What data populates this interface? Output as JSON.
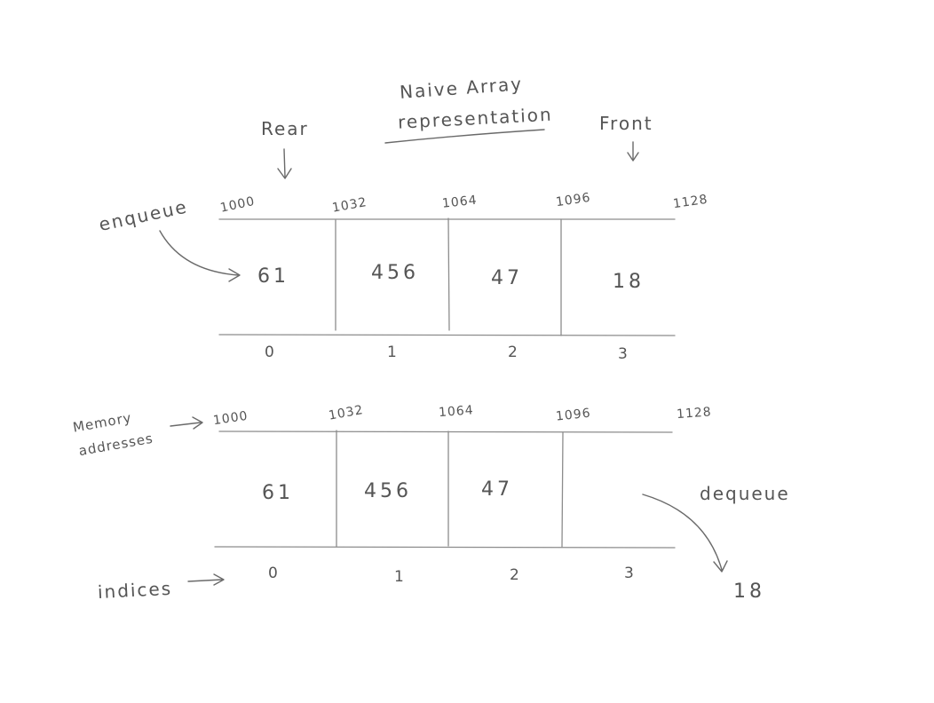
{
  "title": {
    "line1": "Naive Array",
    "line2": "representation"
  },
  "labels": {
    "rear": "Rear",
    "front": "Front",
    "enqueue": "enqueue",
    "dequeue": "dequeue",
    "memory_line1": "Memory",
    "memory_line2": "addresses",
    "indices": "indices",
    "dequeued_value": "18"
  },
  "top_array": {
    "addresses": [
      "1000",
      "1032",
      "1064",
      "1096",
      "1128"
    ],
    "values": [
      "61",
      "456",
      "47",
      "18"
    ],
    "indices": [
      "0",
      "1",
      "2",
      "3"
    ]
  },
  "bottom_array": {
    "addresses": [
      "1000",
      "1032",
      "1064",
      "1096",
      "1128"
    ],
    "values": [
      "61",
      "456",
      "47",
      ""
    ],
    "indices": [
      "0",
      "1",
      "2",
      "3"
    ]
  }
}
